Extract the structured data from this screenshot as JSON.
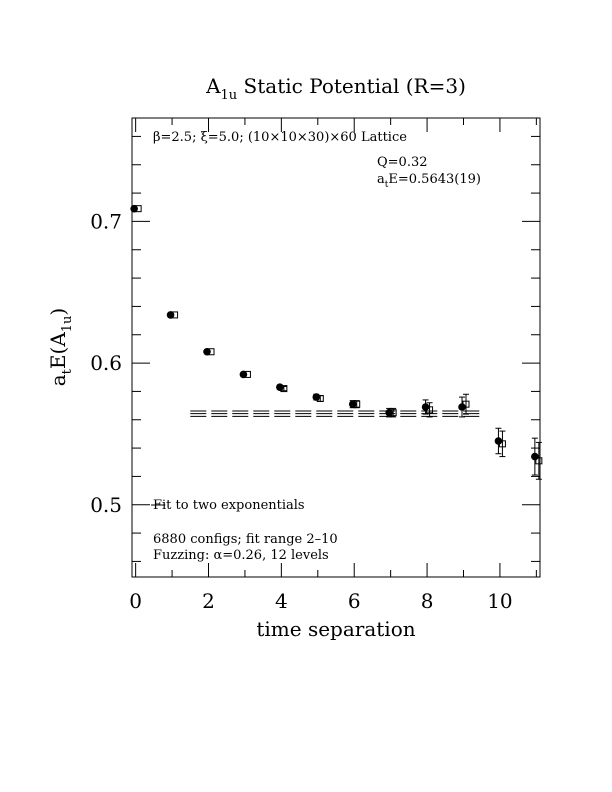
{
  "chart_data": {
    "type": "scatter",
    "title": "A",
    "title_subscript": "1u",
    "title_suffix": " Static Potential (R=3)",
    "xlabel": "time separation",
    "ylabel_base": "a",
    "ylabel_sub1": "t",
    "ylabel_mid": "E(A",
    "ylabel_sub2": "1u",
    "ylabel_end": ")",
    "xlim": [
      -0.1,
      11.1
    ],
    "ylim": [
      0.449,
      0.773
    ],
    "x_ticks": [
      0,
      2,
      4,
      6,
      8,
      10
    ],
    "x_tick_labels": [
      "0",
      "2",
      "4",
      "6",
      "8",
      "10"
    ],
    "y_ticks": [
      0.5,
      0.6,
      0.7
    ],
    "y_tick_labels": [
      "0.5",
      "0.6",
      "0.7"
    ],
    "lattice_note": "β=2.5; ξ=5.0; (10×10×30)×60 Lattice",
    "q_note": "Q=0.32",
    "energy_note_prefix": "a",
    "energy_note_sub": "t",
    "energy_note_suffix": "E=0.5643(19)",
    "fit_label": "Fit to two exponentials",
    "configs_note": "6880 configs; fit range 2–10",
    "fuzzing_note": "Fuzzing: α=0.26, 12 levels",
    "series": [
      {
        "marker": "filled-circle",
        "x": [
          0,
          1,
          2,
          3,
          4,
          5,
          6,
          7,
          8,
          9,
          10,
          11
        ],
        "y": [
          0.709,
          0.634,
          0.608,
          0.592,
          0.583,
          0.576,
          0.571,
          0.565,
          0.569,
          0.569,
          0.545,
          0.534
        ],
        "err": [
          0.0005,
          0.0007,
          0.001,
          0.0012,
          0.0015,
          0.002,
          0.0025,
          0.003,
          0.005,
          0.007,
          0.009,
          0.013
        ]
      },
      {
        "marker": "open-square",
        "x": [
          0,
          1,
          2,
          3,
          4,
          5,
          6,
          7,
          8,
          9,
          10,
          11
        ],
        "y": [
          0.709,
          0.634,
          0.608,
          0.592,
          0.582,
          0.575,
          0.571,
          0.565,
          0.567,
          0.571,
          0.543,
          0.531
        ],
        "err": [
          0.0005,
          0.0007,
          0.001,
          0.0012,
          0.0015,
          0.002,
          0.0025,
          0.003,
          0.005,
          0.007,
          0.009,
          0.013
        ]
      }
    ],
    "fit": {
      "center": 0.5643,
      "error": 0.0019,
      "x_range": [
        1.5,
        9.5
      ]
    }
  }
}
